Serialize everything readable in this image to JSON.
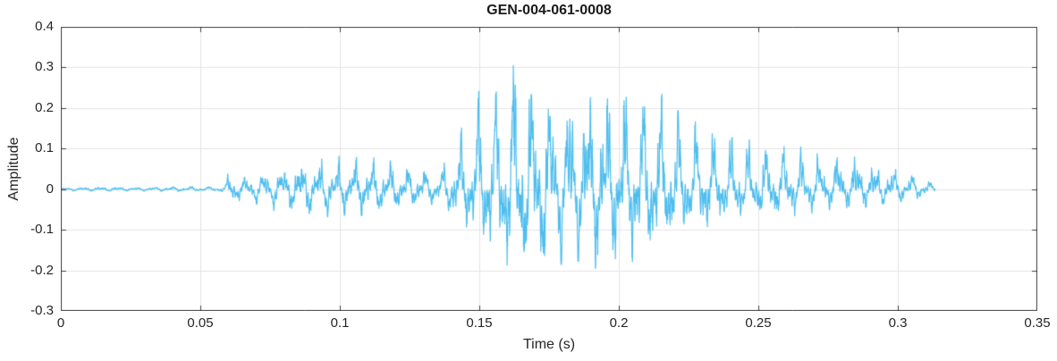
{
  "chart_data": {
    "type": "line",
    "title": "GEN-004-061-0008",
    "xlabel": "Time (s)",
    "ylabel": "Amplitude",
    "xlim": [
      0,
      0.35
    ],
    "ylim": [
      -0.3,
      0.4
    ],
    "xticks": [
      0,
      0.05,
      0.1,
      0.15,
      0.2,
      0.25,
      0.3,
      0.35
    ],
    "xtick_labels": [
      "0",
      "0.05",
      "0.1",
      "0.15",
      "0.2",
      "0.25",
      "0.3",
      "0.35"
    ],
    "yticks": [
      -0.3,
      -0.2,
      -0.1,
      0,
      0.1,
      0.2,
      0.3,
      0.4
    ],
    "ytick_labels": [
      "-0.3",
      "-0.2",
      "-0.1",
      "0",
      "0.1",
      "0.2",
      "0.3",
      "0.4"
    ],
    "grid": true,
    "legend": "none",
    "line_color": "#4DBEEE",
    "grid_color": "#E4E4E4",
    "axis_color": "#404040",
    "text_color": "#262626",
    "signal_start": 0,
    "signal_end": 0.3135,
    "peak_amplitude": 0.335,
    "min_amplitude": -0.265,
    "series_description": "single-channel speech/audio waveform: near silence 0-0.055 s, low-amplitude segment ~0.06-0.135 s (about +/-0.08), loud burst segment ~0.14-0.23 s peaking at 0.335 and -0.265 near t=0.163, decaying oscillation tail to ~0.313 s",
    "envelope_format": "[time_s, upper_amplitude, lower_amplitude]",
    "envelope": [
      [
        0.0,
        0.004,
        -0.004
      ],
      [
        0.018,
        0.007,
        -0.006
      ],
      [
        0.028,
        0.005,
        -0.005
      ],
      [
        0.046,
        0.008,
        -0.007
      ],
      [
        0.056,
        0.006,
        -0.006
      ],
      [
        0.059,
        0.012,
        -0.01
      ],
      [
        0.061,
        0.072,
        -0.048
      ],
      [
        0.064,
        0.03,
        -0.03
      ],
      [
        0.07,
        0.045,
        -0.045
      ],
      [
        0.078,
        0.06,
        -0.055
      ],
      [
        0.086,
        0.075,
        -0.065
      ],
      [
        0.094,
        0.085,
        -0.075
      ],
      [
        0.102,
        0.08,
        -0.07
      ],
      [
        0.11,
        0.085,
        -0.07
      ],
      [
        0.118,
        0.07,
        -0.06
      ],
      [
        0.126,
        0.06,
        -0.055
      ],
      [
        0.133,
        0.05,
        -0.045
      ],
      [
        0.137,
        0.06,
        -0.05
      ],
      [
        0.141,
        0.12,
        -0.09
      ],
      [
        0.147,
        0.19,
        -0.13
      ],
      [
        0.153,
        0.3,
        -0.18
      ],
      [
        0.158,
        0.28,
        -0.2
      ],
      [
        0.163,
        0.335,
        -0.24
      ],
      [
        0.167,
        0.31,
        -0.265
      ],
      [
        0.172,
        0.29,
        -0.22
      ],
      [
        0.178,
        0.24,
        -0.19
      ],
      [
        0.184,
        0.27,
        -0.17
      ],
      [
        0.19,
        0.31,
        -0.2
      ],
      [
        0.196,
        0.28,
        -0.18
      ],
      [
        0.202,
        0.25,
        -0.19
      ],
      [
        0.208,
        0.23,
        -0.2
      ],
      [
        0.214,
        0.245,
        -0.175
      ],
      [
        0.22,
        0.2,
        -0.15
      ],
      [
        0.226,
        0.17,
        -0.13
      ],
      [
        0.233,
        0.15,
        -0.115
      ],
      [
        0.24,
        0.13,
        -0.1
      ],
      [
        0.248,
        0.12,
        -0.085
      ],
      [
        0.256,
        0.11,
        -0.075
      ],
      [
        0.264,
        0.105,
        -0.065
      ],
      [
        0.272,
        0.1,
        -0.058
      ],
      [
        0.28,
        0.1,
        -0.05
      ],
      [
        0.288,
        0.09,
        -0.045
      ],
      [
        0.295,
        0.07,
        -0.04
      ],
      [
        0.301,
        0.05,
        -0.035
      ],
      [
        0.306,
        0.04,
        -0.03
      ],
      [
        0.31,
        0.03,
        -0.02
      ],
      [
        0.3135,
        0.008,
        -0.008
      ]
    ]
  }
}
